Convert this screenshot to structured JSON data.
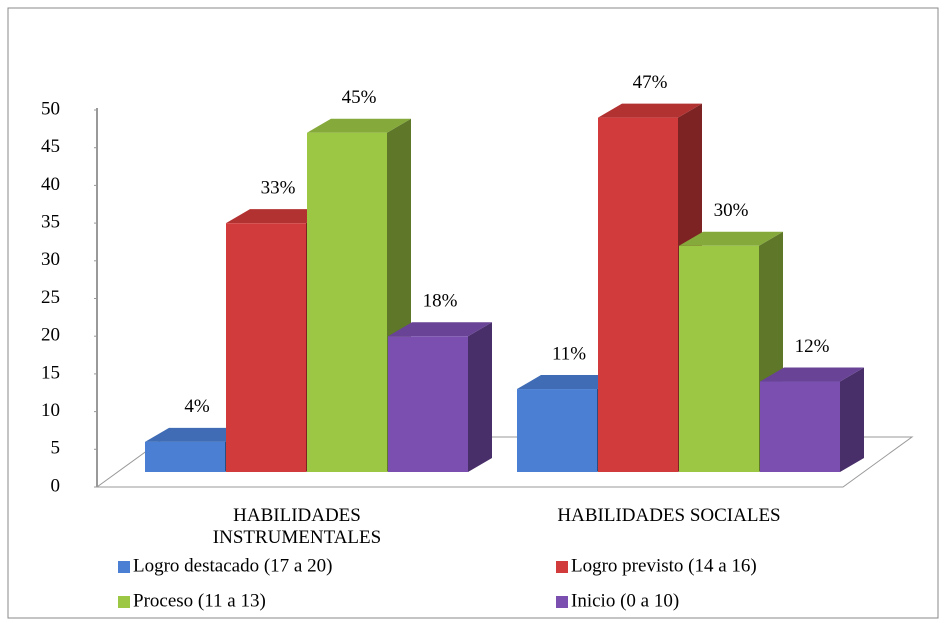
{
  "chart_data": {
    "type": "bar3d",
    "categories": [
      "HABILIDADES INSTRUMENTALES",
      "HABILIDADES SOCIALES"
    ],
    "series": [
      {
        "name": "Logro destacado (17 a 20)",
        "color": "#4a7fd4",
        "values": [
          4,
          11
        ],
        "value_labels": [
          "4%",
          "11%"
        ]
      },
      {
        "name": "Logro previsto (14 a 16)",
        "color": "#d13b3b",
        "values": [
          33,
          47
        ],
        "value_labels": [
          "33%",
          "47%"
        ]
      },
      {
        "name": "Proceso (11 a 13)",
        "color": "#9cc744",
        "values": [
          45,
          30
        ],
        "value_labels": [
          "45%",
          "30%"
        ]
      },
      {
        "name": "Inicio (0 a 10)",
        "color": "#7a4fb0",
        "values": [
          18,
          12
        ],
        "value_labels": [
          "18%",
          "12%"
        ]
      }
    ],
    "ylim": [
      0,
      50
    ],
    "yticks": [
      0,
      5,
      10,
      15,
      20,
      25,
      30,
      35,
      40,
      45,
      50
    ],
    "legend": "bottom"
  }
}
